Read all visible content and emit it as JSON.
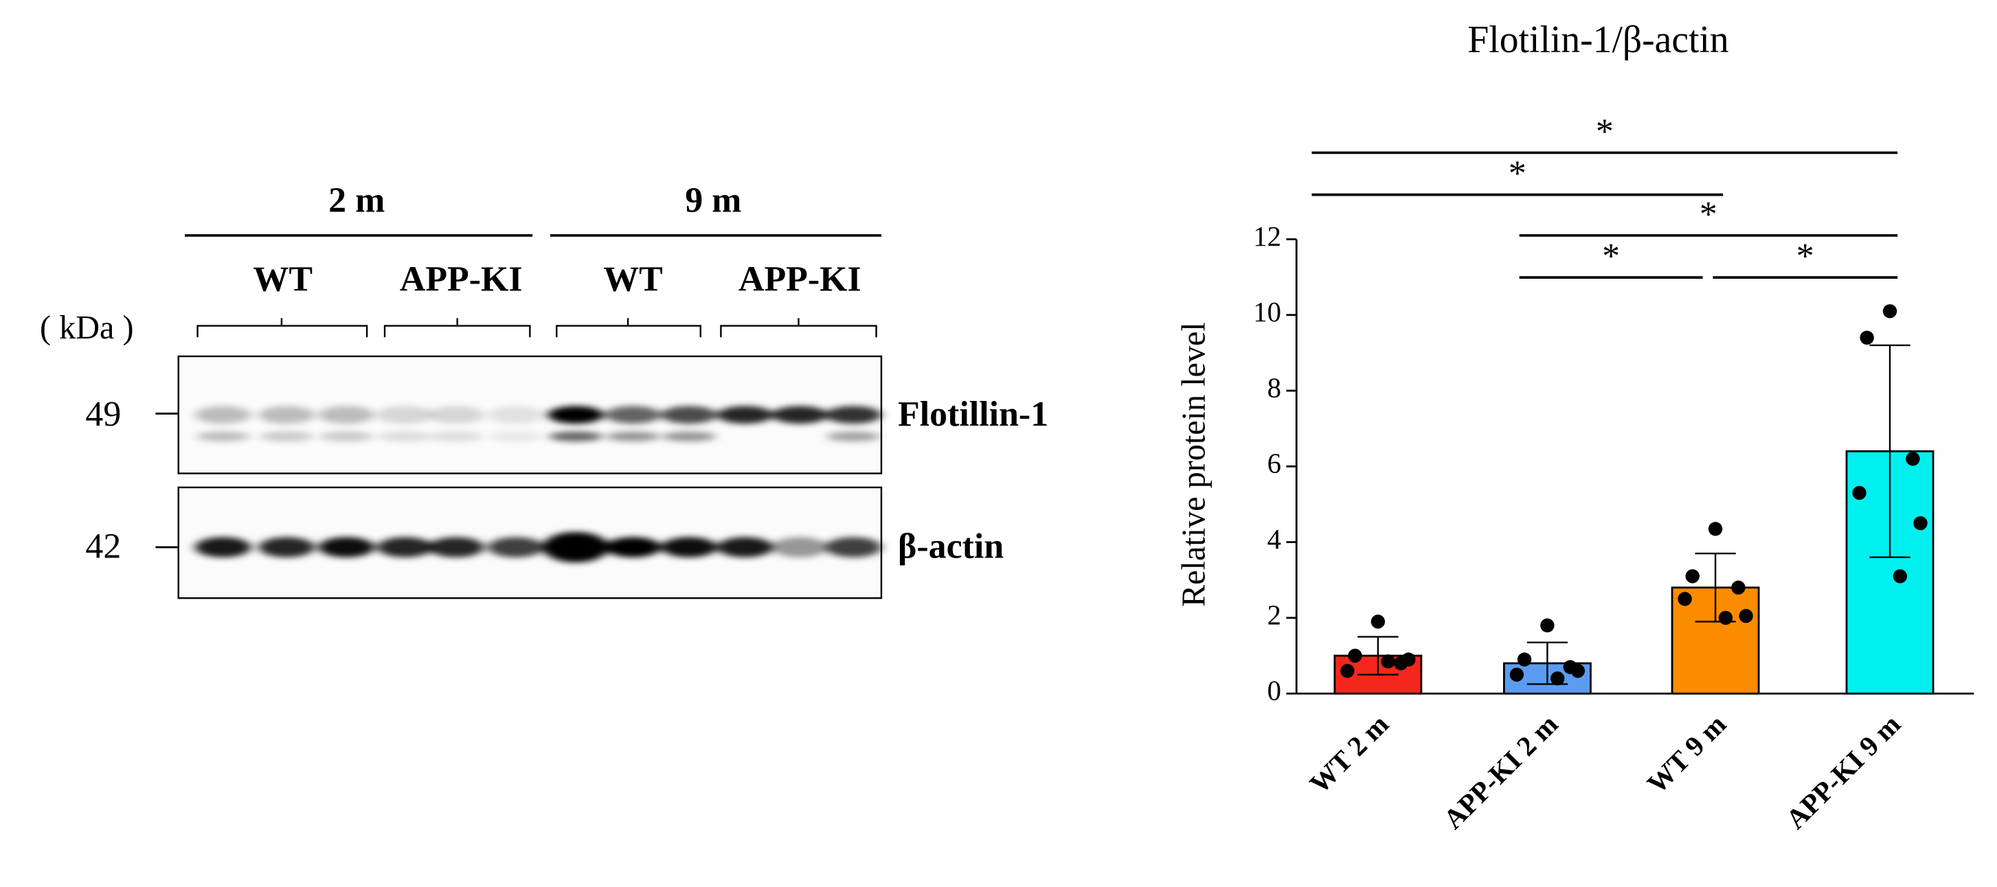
{
  "blot": {
    "groups": [
      "2 m",
      "9 m"
    ],
    "genotypes": [
      "WT",
      "APP-KI",
      "WT",
      "APP-KI"
    ],
    "unit": "( kDa )",
    "markers": [
      "49",
      "42"
    ],
    "proteins": [
      "Flotillin-1",
      "β-actin"
    ]
  },
  "chart_data": {
    "type": "bar",
    "title": "Flotilin-1/β-actin",
    "y_label": "Relative protein level",
    "categories": [
      "WT 2 m",
      "APP-KI 2 m",
      "WT 9 m",
      "APP-KI 9 m"
    ],
    "values": [
      1.0,
      0.8,
      2.8,
      6.4
    ],
    "errors": [
      0.5,
      0.55,
      0.9,
      2.8
    ],
    "colors": [
      "#f4271c",
      "#5b9cf0",
      "#fb8c00",
      "#00f0f0"
    ],
    "points": [
      [
        1.9,
        1.0,
        0.8,
        0.6,
        0.9,
        0.85
      ],
      [
        1.8,
        0.9,
        0.7,
        0.5,
        0.6,
        0.4
      ],
      [
        4.35,
        3.1,
        2.8,
        2.5,
        2.05,
        2.0
      ],
      [
        10.1,
        9.4,
        6.2,
        5.3,
        4.5,
        3.1
      ]
    ],
    "ylim": [
      0,
      12
    ],
    "yticks": [
      0,
      2,
      4,
      6,
      8,
      10,
      12
    ],
    "comparisons": [
      {
        "pair": [
          0,
          3
        ],
        "label": "*"
      },
      {
        "pair": [
          0,
          2
        ],
        "label": "*"
      },
      {
        "pair": [
          1,
          3
        ],
        "label": "*"
      },
      {
        "pair": [
          1,
          2
        ],
        "label": "*"
      },
      {
        "pair": [
          2,
          3
        ],
        "label": "*"
      }
    ]
  }
}
